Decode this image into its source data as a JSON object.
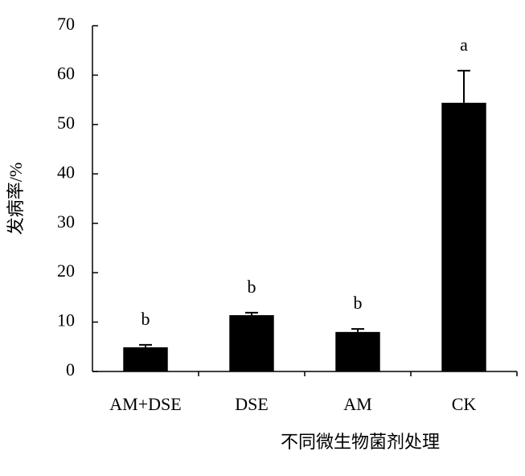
{
  "chart_data": {
    "type": "bar",
    "x_label": "不同微生物菌剂处理",
    "y_label": "发病率/%",
    "categories": [
      "AM+DSE",
      "DSE",
      "AM",
      "CK"
    ],
    "values": [
      4.9,
      11.4,
      8.0,
      54.4
    ],
    "errors": [
      0.5,
      0.5,
      0.6,
      6.5
    ],
    "significance": [
      "b",
      "b",
      "b",
      "a"
    ],
    "color": "#000000",
    "ylim": [
      0,
      70
    ],
    "yticks": [
      0,
      10,
      20,
      30,
      40,
      50,
      60,
      70
    ],
    "grid": false
  }
}
